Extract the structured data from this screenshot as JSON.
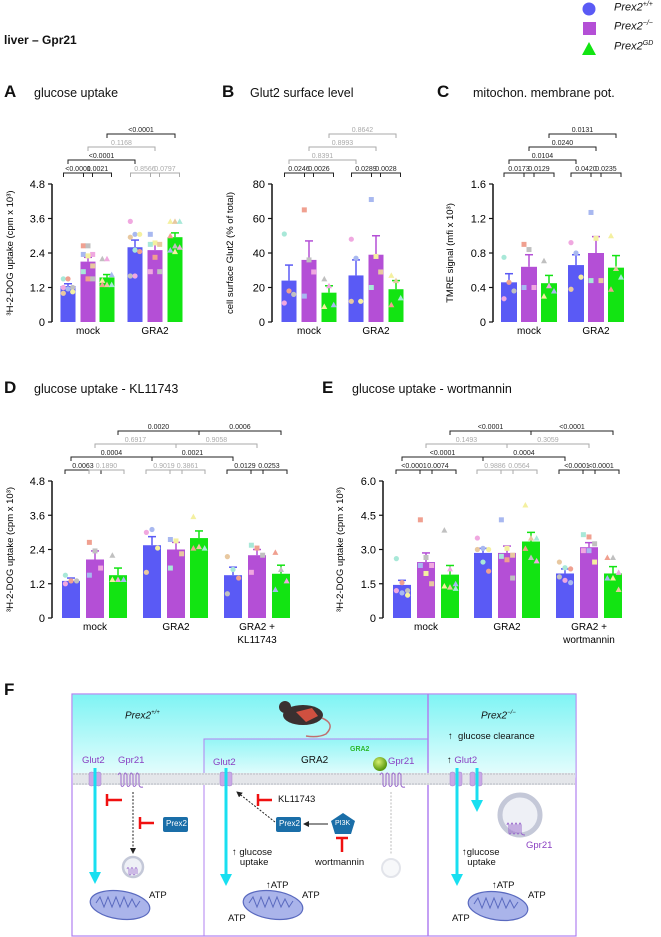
{
  "header": {
    "title": "liver – Gpr21"
  },
  "legend": [
    {
      "label": "Prex2",
      "sup": "+/+",
      "color": "#5a5af5",
      "shape": "circle"
    },
    {
      "label": "Prex2",
      "sup": "−/−",
      "color": "#b44fd6",
      "shape": "square"
    },
    {
      "label": "Prex2",
      "sup": "GD",
      "color": "#12e412",
      "shape": "triangle"
    }
  ],
  "point_colors": [
    "#a8e8d8",
    "#f0a090",
    "#c0c0c0",
    "#f0a8e0",
    "#a8b8f0",
    "#f4f0a0",
    "#e8c8a0"
  ],
  "chart_data": [
    {
      "id": "A",
      "type": "bar",
      "panel_label": "A",
      "title": "glucose uptake",
      "ylabel": "³H-2-DOG uptake (cpm x 10³)",
      "ylim": [
        0,
        4.8
      ],
      "yticks": [
        "0",
        "1.2",
        "2.4",
        "3.6",
        "4.8"
      ],
      "categories": [
        [
          "mock"
        ],
        [
          "GRA2"
        ]
      ],
      "series": [
        "Prex2+/+",
        "Prex2−/−",
        "Prex2GD"
      ],
      "bars": [
        {
          "mean": 1.25,
          "sem": 0.08,
          "points": [
            1.5,
            1.5,
            1.2,
            1.2,
            1.15,
            1.05,
            1.0
          ]
        },
        {
          "mean": 2.1,
          "sem": 0.15,
          "points": [
            2.65,
            2.65,
            2.35,
            2.35,
            2.3,
            1.95,
            1.75,
            1.5,
            1.5
          ]
        },
        {
          "mean": 1.55,
          "sem": 0.1,
          "points": [
            2.2,
            2.2,
            1.65,
            1.45,
            1.3,
            1.3,
            1.3
          ]
        },
        {
          "mean": 2.6,
          "sem": 0.25,
          "points": [
            3.5,
            3.05,
            3.05,
            2.95,
            2.5,
            2.45,
            1.6,
            1.6
          ]
        },
        {
          "mean": 2.5,
          "sem": 0.25,
          "points": [
            3.05,
            2.75,
            2.7,
            2.7,
            2.25,
            1.75,
            1.75
          ]
        },
        {
          "mean": 2.95,
          "sem": 0.15,
          "points": [
            3.5,
            3.5,
            3.5,
            3.0,
            2.65,
            2.6,
            2.5,
            2.45
          ]
        }
      ],
      "brackets": [
        {
          "from": 0,
          "to": 1,
          "level": 0,
          "label": "<0.0001",
          "sig": true
        },
        {
          "from": 1,
          "to": 2,
          "level": 0,
          "label": "0.0021",
          "sig": true
        },
        {
          "from": 3,
          "to": 4,
          "level": 0,
          "label": "0.8566",
          "sig": false
        },
        {
          "from": 4,
          "to": 5,
          "level": 0,
          "label": "0.0797",
          "sig": false
        },
        {
          "from": 0,
          "to": 3,
          "level": 1,
          "label": "<0.0001",
          "sig": true
        },
        {
          "from": 1,
          "to": 4,
          "level": 2,
          "label": "0.1168",
          "sig": false
        },
        {
          "from": 2,
          "to": 5,
          "level": 3,
          "label": "<0.0001",
          "sig": true
        }
      ]
    },
    {
      "id": "B",
      "type": "bar",
      "panel_label": "B",
      "title": "Glut2 surface level",
      "ylabel": "cell surface Glut2 (% of total)",
      "ylim": [
        0,
        80
      ],
      "yticks": [
        "0",
        "20",
        "40",
        "60",
        "80"
      ],
      "categories": [
        [
          "mock"
        ],
        [
          "GRA2"
        ]
      ],
      "series": [
        "Prex2+/+",
        "Prex2−/−",
        "Prex2GD"
      ],
      "bars": [
        {
          "mean": 24,
          "sem": 9,
          "points": [
            51,
            18,
            16,
            11
          ]
        },
        {
          "mean": 36,
          "sem": 11,
          "points": [
            65,
            36,
            29,
            15
          ]
        },
        {
          "mean": 17,
          "sem": 4,
          "points": [
            25,
            21,
            10,
            9
          ]
        },
        {
          "mean": 27,
          "sem": 9,
          "points": [
            48,
            37,
            12,
            12
          ]
        },
        {
          "mean": 39,
          "sem": 11,
          "points": [
            71,
            38,
            29,
            20
          ]
        },
        {
          "mean": 19,
          "sem": 5,
          "points": [
            27,
            24,
            14,
            10
          ]
        }
      ],
      "brackets": [
        {
          "from": 0,
          "to": 1,
          "level": 0,
          "label": "0.0246",
          "sig": true
        },
        {
          "from": 1,
          "to": 2,
          "level": 0,
          "label": "0.0026",
          "sig": true
        },
        {
          "from": 3,
          "to": 4,
          "level": 0,
          "label": "0.0289",
          "sig": true
        },
        {
          "from": 4,
          "to": 5,
          "level": 0,
          "label": "0.0028",
          "sig": true
        },
        {
          "from": 0,
          "to": 3,
          "level": 1,
          "label": "0.8391",
          "sig": false
        },
        {
          "from": 1,
          "to": 4,
          "level": 2,
          "label": "0.8993",
          "sig": false
        },
        {
          "from": 2,
          "to": 5,
          "level": 3,
          "label": "0.8642",
          "sig": false
        }
      ]
    },
    {
      "id": "C",
      "type": "bar",
      "panel_label": "C",
      "title": "mitochon. membrane pot.",
      "ylabel": "TMRE signal (mfi x 10³)",
      "ylim": [
        0,
        1.6
      ],
      "yticks": [
        "0",
        "0.4",
        "0.8",
        "1.2",
        "1.6"
      ],
      "categories": [
        [
          "mock"
        ],
        [
          "GRA2"
        ]
      ],
      "series": [
        "Prex2+/+",
        "Prex2−/−",
        "Prex2GD"
      ],
      "bars": [
        {
          "mean": 0.46,
          "sem": 0.1,
          "points": [
            0.75,
            0.46,
            0.36,
            0.27
          ]
        },
        {
          "mean": 0.64,
          "sem": 0.14,
          "points": [
            0.9,
            0.84,
            0.4,
            0.4
          ]
        },
        {
          "mean": 0.45,
          "sem": 0.09,
          "points": [
            0.71,
            0.42,
            0.36,
            0.3
          ]
        },
        {
          "mean": 0.66,
          "sem": 0.12,
          "points": [
            0.92,
            0.8,
            0.52,
            0.38
          ]
        },
        {
          "mean": 0.8,
          "sem": 0.19,
          "points": [
            1.27,
            0.97,
            0.48,
            0.48
          ]
        },
        {
          "mean": 0.63,
          "sem": 0.14,
          "points": [
            1.0,
            0.62,
            0.52,
            0.38
          ]
        }
      ],
      "brackets": [
        {
          "from": 0,
          "to": 1,
          "level": 0,
          "label": "0.0173",
          "sig": true
        },
        {
          "from": 1,
          "to": 2,
          "level": 0,
          "label": "0.0129",
          "sig": true
        },
        {
          "from": 3,
          "to": 4,
          "level": 0,
          "label": "0.0420",
          "sig": true
        },
        {
          "from": 4,
          "to": 5,
          "level": 0,
          "label": "0.0235",
          "sig": true
        },
        {
          "from": 0,
          "to": 3,
          "level": 1,
          "label": "0.0104",
          "sig": true
        },
        {
          "from": 1,
          "to": 4,
          "level": 2,
          "label": "0.0240",
          "sig": true
        },
        {
          "from": 2,
          "to": 5,
          "level": 3,
          "label": "0.0131",
          "sig": true
        }
      ]
    },
    {
      "id": "D",
      "type": "bar",
      "panel_label": "D",
      "title": "glucose uptake - KL11743",
      "ylabel": "³H-2-DOG uptake (cpm x 10³)",
      "ylim": [
        0,
        4.8
      ],
      "yticks": [
        "0",
        "1.2",
        "2.4",
        "3.6",
        "4.8"
      ],
      "categories": [
        [
          "mock"
        ],
        [
          "GRA2"
        ],
        [
          "GRA2 +",
          "KL11743"
        ]
      ],
      "series": [
        "Prex2+/+",
        "Prex2−/−",
        "Prex2GD"
      ],
      "bars": [
        {
          "mean": 1.3,
          "sem": 0.1,
          "points": [
            1.5,
            1.3,
            1.3,
            1.2
          ]
        },
        {
          "mean": 2.05,
          "sem": 0.3,
          "points": [
            2.65,
            2.35,
            1.75,
            1.5
          ]
        },
        {
          "mean": 1.5,
          "sem": 0.25,
          "points": [
            2.2,
            1.35,
            1.35,
            1.35
          ]
        },
        {
          "mean": 2.55,
          "sem": 0.3,
          "points": [
            3.0,
            3.1,
            2.45,
            1.6
          ]
        },
        {
          "mean": 2.4,
          "sem": 0.25,
          "points": [
            2.75,
            2.7,
            2.25,
            1.75
          ]
        },
        {
          "mean": 2.8,
          "sem": 0.25,
          "points": [
            3.55,
            2.5,
            2.45,
            2.45
          ]
        },
        {
          "mean": 1.5,
          "sem": 0.28,
          "points": [
            2.15,
            1.7,
            1.4,
            0.85
          ]
        },
        {
          "mean": 2.2,
          "sem": 0.2,
          "points": [
            2.55,
            2.45,
            2.2,
            1.6
          ]
        },
        {
          "mean": 1.55,
          "sem": 0.3,
          "points": [
            2.3,
            1.7,
            1.3,
            1.0
          ]
        }
      ],
      "brackets": [
        {
          "from": 0,
          "to": 1,
          "level": 0,
          "label": "0.0063",
          "sig": true
        },
        {
          "from": 1,
          "to": 2,
          "level": 0,
          "label": "0.1890",
          "sig": false
        },
        {
          "from": 3,
          "to": 4,
          "level": 0,
          "label": "0.9019",
          "sig": false
        },
        {
          "from": 4,
          "to": 5,
          "level": 0,
          "label": "0.3861",
          "sig": false
        },
        {
          "from": 6,
          "to": 7,
          "level": 0,
          "label": "0.0129",
          "sig": true
        },
        {
          "from": 7,
          "to": 8,
          "level": 0,
          "label": "0.0253",
          "sig": true
        },
        {
          "from": 0,
          "to": 3,
          "level": 1,
          "label": "0.0004",
          "sig": true
        },
        {
          "from": 3,
          "to": 6,
          "level": 1,
          "label": "0.0021",
          "sig": true
        },
        {
          "from": 1,
          "to": 4,
          "level": 2,
          "label": "0.6917",
          "sig": false
        },
        {
          "from": 4,
          "to": 7,
          "level": 2,
          "label": "0.9058",
          "sig": false
        },
        {
          "from": 2,
          "to": 5,
          "level": 3,
          "label": "0.0020",
          "sig": true
        },
        {
          "from": 5,
          "to": 8,
          "level": 3,
          "label": "0.0006",
          "sig": true
        }
      ]
    },
    {
      "id": "E",
      "type": "bar",
      "panel_label": "E",
      "title": "glucose uptake -  wortmannin",
      "ylabel": "³H-2-DOG uptake (cpm x 10³)",
      "ylim": [
        0,
        6.0
      ],
      "yticks": [
        "0",
        "1.5",
        "3.0",
        "4.5",
        "6.0"
      ],
      "categories": [
        [
          "mock"
        ],
        [
          "GRA2"
        ],
        [
          "GRA2 +",
          "wortmannin"
        ]
      ],
      "series": [
        "Prex2+/+",
        "Prex2−/−",
        "Prex2GD"
      ],
      "bars": [
        {
          "mean": 1.45,
          "sem": 0.2,
          "points": [
            2.6,
            1.55,
            1.2,
            1.2,
            1.1,
            1.0
          ]
        },
        {
          "mean": 2.45,
          "sem": 0.4,
          "points": [
            4.3,
            2.65,
            2.3,
            2.3,
            1.95,
            1.5
          ]
        },
        {
          "mean": 1.9,
          "sem": 0.4,
          "points": [
            3.85,
            2.15,
            1.5,
            1.4,
            1.35,
            1.3
          ]
        },
        {
          "mean": 2.85,
          "sem": 0.2,
          "points": [
            3.5,
            3.05,
            3.0,
            3.0,
            2.45,
            2.05
          ]
        },
        {
          "mean": 2.85,
          "sem": 0.3,
          "points": [
            4.3,
            3.05,
            2.75,
            2.7,
            2.55,
            1.75
          ]
        },
        {
          "mean": 3.35,
          "sem": 0.4,
          "points": [
            4.95,
            3.5,
            3.5,
            3.05,
            2.65,
            2.5
          ]
        },
        {
          "mean": 1.95,
          "sem": 0.2,
          "points": [
            2.45,
            2.2,
            2.15,
            1.8,
            1.65,
            1.55
          ]
        },
        {
          "mean": 3.1,
          "sem": 0.2,
          "points": [
            3.65,
            3.55,
            3.25,
            2.95,
            2.95,
            2.45
          ]
        },
        {
          "mean": 1.95,
          "sem": 0.3,
          "points": [
            2.65,
            2.65,
            2.0,
            1.75,
            1.75,
            1.25
          ]
        }
      ],
      "brackets": [
        {
          "from": 0,
          "to": 1,
          "level": 0,
          "label": "<0.0001",
          "sig": true
        },
        {
          "from": 1,
          "to": 2,
          "level": 0,
          "label": "0.0074",
          "sig": true
        },
        {
          "from": 3,
          "to": 4,
          "level": 0,
          "label": "0.9886",
          "sig": false
        },
        {
          "from": 4,
          "to": 5,
          "level": 0,
          "label": "0.0564",
          "sig": false
        },
        {
          "from": 6,
          "to": 7,
          "level": 0,
          "label": "<0.0001",
          "sig": true
        },
        {
          "from": 7,
          "to": 8,
          "level": 0,
          "label": "<0.0001",
          "sig": true
        },
        {
          "from": 0,
          "to": 3,
          "level": 1,
          "label": "<0.0001",
          "sig": true
        },
        {
          "from": 3,
          "to": 6,
          "level": 1,
          "label": "0.0004",
          "sig": true
        },
        {
          "from": 1,
          "to": 4,
          "level": 2,
          "label": "0.1493",
          "sig": false
        },
        {
          "from": 4,
          "to": 7,
          "level": 2,
          "label": "0.3059",
          "sig": false
        },
        {
          "from": 2,
          "to": 5,
          "level": 3,
          "label": "<0.0001",
          "sig": true
        },
        {
          "from": 5,
          "to": 8,
          "level": 3,
          "label": "<0.0001",
          "sig": true
        }
      ]
    }
  ],
  "diagram": {
    "panel_label": "F",
    "wt_title": "Prex2",
    "wt_sup": "+/+",
    "ko_title": "Prex2",
    "ko_sup": "−/−",
    "glut2": "Glut2",
    "gpr21": "Gpr21",
    "prex2": "Prex2",
    "pi3k": "PI3K",
    "gra2": "GRA2",
    "gra2_ligand": "GRA2",
    "kl11743": "KL11743",
    "wortmannin": "wortmannin",
    "glucose_uptake_1": "glucose",
    "glucose_uptake_2": "uptake",
    "glucose_clearance": "glucose clearance",
    "atp": "ATP",
    "up_arrow": "↑"
  }
}
